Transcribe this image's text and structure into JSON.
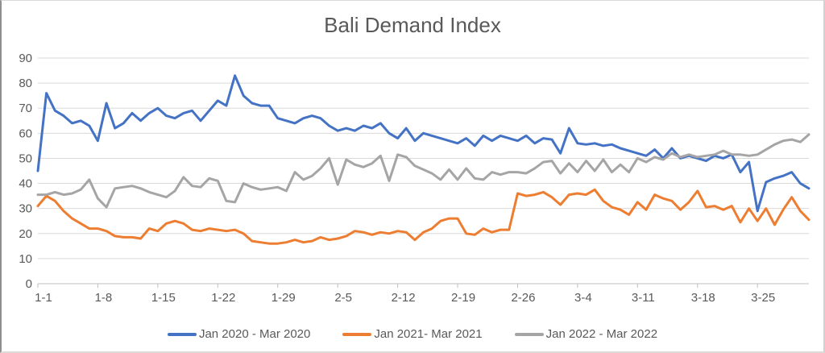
{
  "chart_data": {
    "type": "line",
    "title": "Bali Demand Index",
    "xlabel": "",
    "ylabel": "",
    "ylim": [
      0,
      90
    ],
    "y_tick_step": 10,
    "y_tick_labels": [
      "0",
      "10",
      "20",
      "30",
      "40",
      "50",
      "60",
      "70",
      "80",
      "90"
    ],
    "x_tick_labels": [
      "1-1",
      "1-8",
      "1-15",
      "1-22",
      "1-29",
      "2-5",
      "2-12",
      "2-19",
      "2-26",
      "3-4",
      "3-11",
      "3-18",
      "3-25"
    ],
    "x_tick_indices": [
      0,
      7,
      14,
      21,
      28,
      35,
      42,
      49,
      56,
      63,
      70,
      77,
      84
    ],
    "grid": "horizontal",
    "legend_position": "bottom-center",
    "colors": {
      "gridline": "#d9d9d9",
      "axis_line": "#bfbfbf",
      "tick_mark": "#bfbfbf",
      "axis_text": "#595959",
      "title_text": "#595959",
      "background": "#ffffff"
    },
    "series": [
      {
        "name": "Jan 2020 - Mar 2020",
        "color": "#4472C4",
        "values": [
          45,
          76,
          69,
          67,
          64,
          65,
          63,
          57,
          72,
          62,
          64,
          68,
          65,
          68,
          70,
          67,
          66,
          68,
          69,
          65,
          69,
          73,
          71,
          83,
          75,
          72,
          71,
          71,
          66,
          65,
          64,
          66,
          67,
          66,
          63,
          61,
          62,
          61,
          63,
          62,
          64,
          60,
          58,
          62,
          57,
          60,
          59,
          58,
          57,
          56,
          58,
          55,
          59,
          57,
          59,
          58,
          57,
          59,
          56,
          58,
          57.5,
          52,
          62,
          56,
          55.5,
          56,
          55,
          55.5,
          54,
          53,
          52,
          51,
          53.5,
          50,
          54,
          50,
          51,
          50,
          49,
          51,
          50,
          51.5,
          44.5,
          48.5,
          29,
          40.5,
          42,
          43,
          44.5,
          40,
          38
        ]
      },
      {
        "name": "Jan 2021- Mar 2021",
        "color": "#ED7D31",
        "values": [
          31,
          35,
          33,
          29,
          26,
          24,
          22,
          22,
          21,
          19,
          18.5,
          18.5,
          18,
          22,
          21,
          24,
          25,
          24,
          21.5,
          21,
          22,
          21.5,
          21,
          21.5,
          20,
          17,
          16.5,
          16,
          16,
          16.5,
          17.5,
          16.5,
          17,
          18.5,
          17.5,
          18,
          19,
          21,
          20.5,
          19.5,
          20.5,
          20,
          21,
          20.5,
          17.5,
          20.5,
          22,
          25,
          26,
          26,
          20,
          19.5,
          22,
          20.5,
          21.5,
          21.5,
          36,
          35,
          35.5,
          36.5,
          34.5,
          31.5,
          35.5,
          36,
          35.5,
          37.5,
          33,
          30.5,
          29.5,
          27.5,
          32.5,
          29.5,
          35.5,
          34,
          33,
          29.5,
          32.5,
          37,
          30.5,
          31,
          29.5,
          31,
          24.5,
          30,
          25,
          30,
          23.5,
          29.5,
          34.5,
          29,
          25.5
        ]
      },
      {
        "name": "Jan 2022 - Mar 2022",
        "color": "#A5A5A5",
        "values": [
          35.5,
          35.5,
          36.5,
          35.5,
          36,
          37.5,
          41.5,
          34,
          30.5,
          38,
          38.5,
          39,
          38,
          36.5,
          35.5,
          34.5,
          37,
          42.5,
          39,
          38.5,
          42,
          41,
          33,
          32.5,
          40,
          38.5,
          37.5,
          38,
          38.5,
          37,
          44.5,
          41.5,
          43,
          46,
          50,
          39.5,
          49.5,
          47.5,
          46.5,
          48,
          51,
          41,
          51.5,
          50.5,
          47,
          45.5,
          44,
          41.5,
          45.5,
          41.5,
          46,
          42,
          41.5,
          44.5,
          43.5,
          44.5,
          44.5,
          44,
          46,
          48.5,
          49,
          44,
          48,
          44.5,
          49,
          45,
          49.5,
          44.5,
          47.5,
          44.5,
          50,
          48.5,
          50.5,
          49.5,
          52,
          50.5,
          51.5,
          50.5,
          51,
          51.5,
          53,
          51.5,
          51.5,
          51,
          51.5,
          53.5,
          55.5,
          57,
          57.5,
          56.5,
          59.5
        ]
      }
    ]
  }
}
